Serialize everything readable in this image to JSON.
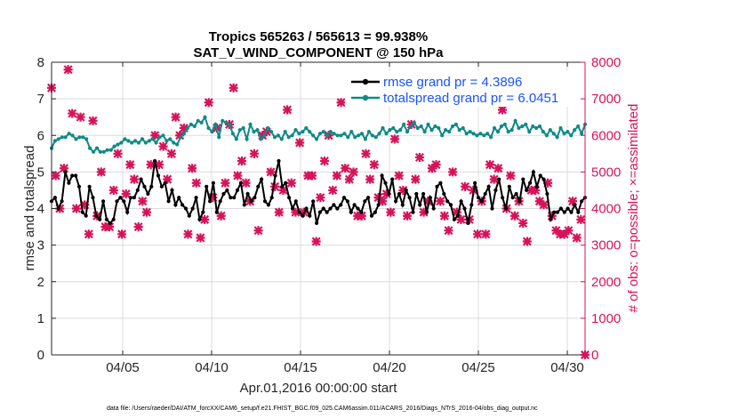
{
  "chart_data": {
    "type": "line",
    "title_line1": "Tropics 565263 / 565613 = 99.938%",
    "title_line2": "SAT_V_WIND_COMPONENT @ 150 hPa",
    "xlabel": "Apr.01,2016 00:00:00 start",
    "ylabel_left": "rmse and totalspread",
    "ylabel_right": "# of obs: o=possible; ×=assimilated",
    "footnote": "data file: /Users/raeder/DAI/ATM_forcXX/CAM6_setup/f.e21.FHIST_BGC.f09_025.CAM6assim.011/ACARS_2016/Diags_NTrS_2016-04/obs_diag_output.nc",
    "xlim": [
      1,
      31
    ],
    "ylim_left": [
      0,
      8
    ],
    "ylim_right": [
      0,
      8000
    ],
    "x_ticks": [
      5,
      10,
      15,
      20,
      25,
      30
    ],
    "x_tick_labels": [
      "04/05",
      "04/10",
      "04/15",
      "04/20",
      "04/25",
      "04/30"
    ],
    "y_left_ticks": [
      0,
      1,
      2,
      3,
      4,
      5,
      6,
      7,
      8
    ],
    "y_left_tick_labels": [
      "0",
      "1",
      "2",
      "3",
      "4",
      "5",
      "6",
      "7",
      "8"
    ],
    "y_right_ticks": [
      0,
      1000,
      2000,
      3000,
      4000,
      5000,
      6000,
      7000,
      8000
    ],
    "y_right_tick_labels": [
      "0",
      "1000",
      "2000",
      "3000",
      "4000",
      "5000",
      "6000",
      "7000",
      "8000"
    ],
    "colors": {
      "rmse": "#000000",
      "spread": "#0f8a87",
      "obs": "#d6135a",
      "legend_text": "#1a53ff",
      "axis": "#262626"
    },
    "series": [
      {
        "name": "rmse grand pr = 4.3896",
        "values": [
          4.2,
          4.3,
          4.0,
          4.2,
          5.0,
          4.7,
          4.9,
          4.9,
          4.6,
          3.9,
          3.8,
          4.6,
          4.3,
          3.8,
          3.7,
          4.2,
          3.7,
          3.6,
          3.7,
          4.2,
          4.3,
          4.2,
          3.9,
          4.3,
          4.3,
          4.5,
          4.8,
          4.6,
          4.4,
          4.6,
          5.3,
          4.9,
          4.6,
          4.7,
          4.2,
          4.5,
          4.1,
          4.3,
          4.1,
          4.0,
          3.8,
          4.0,
          4.3,
          3.7,
          3.9,
          4.6,
          4.2,
          4.7,
          3.9,
          4.2,
          4.4,
          4.5,
          4.3,
          4.3,
          4.5,
          4.7,
          4.1,
          4.4,
          4.2,
          4.3,
          4.6,
          4.8,
          4.2,
          4.1,
          4.3,
          4.9,
          5.3,
          4.6,
          4.7,
          4.3,
          4.0,
          4.2,
          3.9,
          3.8,
          4.0,
          3.8,
          4.2,
          3.6,
          3.9,
          4.0,
          3.9,
          4.0,
          4.1,
          4.0,
          4.1,
          4.3,
          4.2,
          3.9,
          4.1,
          4.0,
          3.9,
          4.2,
          4.3,
          3.8,
          3.9,
          4.1,
          4.9,
          4.7,
          4.4,
          4.8,
          4.2,
          4.4,
          4.1,
          4.5,
          4.3,
          3.9,
          4.4,
          4.1,
          4.4,
          3.9,
          4.3,
          4.0,
          4.6,
          4.7,
          4.4,
          4.2,
          4.1,
          3.7,
          3.8,
          4.2,
          4.0,
          3.6,
          4.1,
          4.7,
          4.3,
          4.2,
          4.4,
          4.6,
          4.0,
          4.5,
          4.8,
          4.3,
          4.0,
          4.6,
          4.3,
          4.4,
          4.2,
          4.8,
          4.5,
          4.7,
          5.0,
          4.6,
          4.9,
          4.8,
          4.4,
          3.7,
          3.9,
          3.9,
          4.0,
          3.9,
          4.0,
          3.9,
          4.1,
          3.9,
          4.2,
          4.3
        ]
      },
      {
        "name": "totalspread grand pr = 6.0451",
        "values": [
          5.65,
          5.85,
          5.9,
          5.95,
          5.95,
          6.05,
          6.0,
          5.9,
          5.95,
          5.95,
          5.9,
          5.65,
          5.55,
          5.65,
          5.55,
          5.55,
          5.6,
          5.6,
          5.7,
          5.75,
          5.8,
          5.9,
          5.85,
          5.8,
          5.85,
          5.8,
          5.9,
          5.8,
          5.85,
          5.9,
          5.8,
          5.95,
          6.0,
          5.85,
          5.9,
          5.8,
          5.75,
          5.95,
          6.05,
          6.2,
          6.3,
          6.25,
          6.4,
          6.35,
          6.5,
          6.2,
          6.1,
          6.3,
          5.95,
          6.4,
          6.35,
          6.3,
          6.05,
          5.9,
          6.15,
          6.2,
          5.9,
          6.3,
          6.1,
          6.15,
          5.9,
          6.0,
          6.2,
          6.1,
          5.95,
          6.0,
          5.9,
          6.1,
          5.95,
          6.0,
          6.15,
          6.05,
          6.1,
          6.2,
          6.1,
          6.0,
          5.9,
          6.05,
          6.1,
          6.0,
          6.1,
          6.05,
          6.0,
          6.0,
          6.05,
          5.95,
          6.1,
          5.95,
          6.0,
          6.05,
          5.9,
          6.1,
          6.0,
          5.95,
          6.05,
          6.2,
          6.05,
          6.15,
          6.2,
          6.1,
          6.15,
          6.3,
          6.1,
          6.25,
          6.35,
          6.2,
          6.25,
          6.1,
          6.3,
          6.15,
          6.25,
          6.2,
          6.0,
          6.15,
          6.1,
          6.25,
          6.3,
          6.15,
          6.2,
          6.05,
          6.1,
          6.05,
          6.0,
          6.05,
          6.0,
          6.05,
          5.95,
          6.2,
          6.1,
          6.25,
          6.3,
          6.1,
          6.15,
          6.4,
          6.2,
          6.25,
          6.3,
          6.1,
          6.25,
          6.2,
          6.25,
          6.1,
          6.0,
          6.15,
          6.05,
          5.95,
          6.2,
          6.05,
          6.1,
          6.0,
          6.15,
          6.25,
          6.05,
          6.3
        ]
      }
    ],
    "obs_possible": {
      "name": "possible",
      "values": [
        7300,
        4900,
        4000,
        5100,
        7800,
        6600,
        4000,
        6500,
        4100,
        3300,
        6400,
        3800,
        5000,
        3500,
        3500,
        4500,
        5500,
        3300,
        4400,
        5200,
        4800,
        3500,
        4200,
        3900,
        5200,
        6000,
        5200,
        5700,
        4800,
        5500,
        6500,
        6000,
        6200,
        3300,
        5100,
        4700,
        3200,
        3700,
        6900,
        4300,
        6200,
        3800,
        4700,
        6300,
        7300,
        4900,
        5300,
        4700,
        4200,
        5500,
        3400,
        6000,
        6100,
        5000,
        4600,
        3900,
        4500,
        6700,
        4700,
        3900,
        5800,
        3900,
        4900,
        4900,
        3100,
        4300,
        5300,
        6000,
        4500,
        4900,
        6900,
        5100,
        4800,
        5000,
        3800,
        3800,
        5500,
        4800,
        5200,
        4300,
        4200,
        4400,
        3900,
        5900,
        4900,
        4500,
        3800,
        6300,
        4800,
        5400,
        3900,
        4200,
        5100,
        5200,
        4200,
        3800,
        3400,
        5000,
        3900,
        3700,
        4600,
        3700,
        4500,
        3300,
        4200,
        3300,
        5200,
        4800,
        5100,
        6700,
        4000,
        4900,
        3800,
        4200,
        3600,
        3100,
        4500,
        4500,
        4200,
        4100,
        4700,
        3800,
        3400,
        3300,
        3300,
        3400,
        4200,
        3200,
        3700,
        0
      ]
    }
  }
}
